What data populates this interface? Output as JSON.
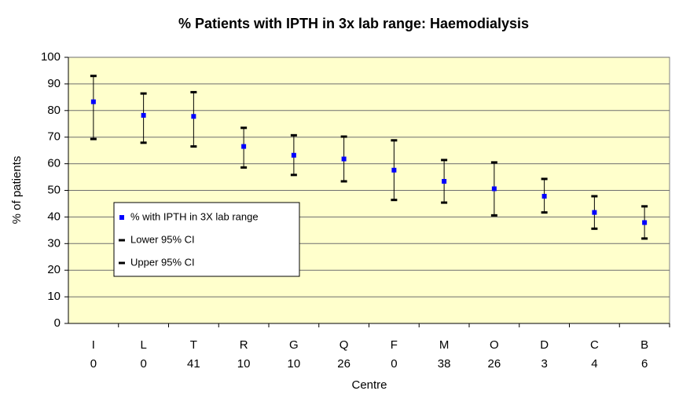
{
  "chart_data": {
    "type": "errorbar",
    "title": "% Patients with IPTH in 3x lab range: Haemodialysis",
    "x_label": "Centre",
    "y_label": "% of patients",
    "categories": [
      "I",
      "L",
      "T",
      "R",
      "G",
      "Q",
      "F",
      "M",
      "O",
      "D",
      "C",
      "B"
    ],
    "category_counts": [
      0,
      0,
      41,
      10,
      10,
      26,
      0,
      38,
      26,
      3,
      4,
      6
    ],
    "series": [
      {
        "name": "% with IPTH in 3X lab range",
        "color": "#0000ff",
        "marker": "square",
        "values": [
          83.3,
          78.2,
          77.8,
          66.5,
          63.2,
          61.8,
          57.6,
          53.4,
          50.6,
          47.8,
          41.7,
          37.9
        ]
      },
      {
        "name": "Lower 95% CI",
        "color": "#000000",
        "marker": "dash",
        "values": [
          69.3,
          67.9,
          66.5,
          58.6,
          55.8,
          53.4,
          46.4,
          45.4,
          40.6,
          41.7,
          35.6,
          31.9
        ]
      },
      {
        "name": "Upper 95% CI",
        "color": "#000000",
        "marker": "dash",
        "values": [
          93.0,
          86.4,
          86.9,
          73.5,
          70.7,
          70.2,
          68.8,
          61.4,
          60.5,
          54.3,
          47.8,
          44.0
        ]
      }
    ],
    "ylim": [
      0,
      100
    ],
    "yticks": [
      0,
      10,
      20,
      30,
      40,
      50,
      60,
      70,
      80,
      90,
      100
    ],
    "grid": true,
    "background": "#ffffcc"
  }
}
